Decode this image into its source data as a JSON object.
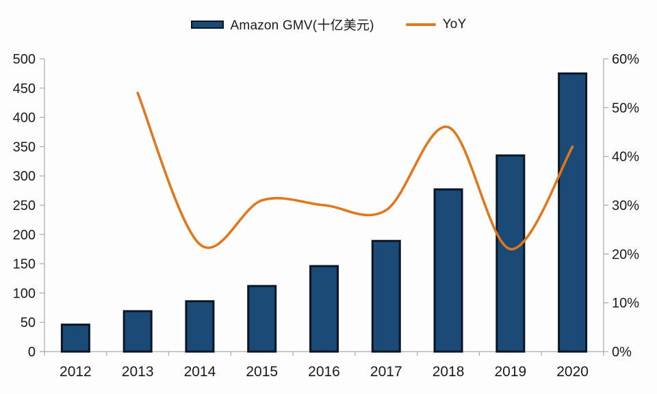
{
  "legend": {
    "items": [
      {
        "label": "Amazon GMV(十亿美元)",
        "swatch": "bar",
        "color": "#1b4a76",
        "border_color": "#0a1626"
      },
      {
        "label": "YoY",
        "swatch": "line",
        "color": "#e2761b"
      }
    ]
  },
  "colors": {
    "bar_fill": "#1b4a76",
    "bar_border": "#0a1626",
    "line": "#e2761b",
    "axis": "#a9a9a9",
    "text": "#1a1a1a",
    "background": "#fdfdfd"
  },
  "chart_data": {
    "type": "bar",
    "subtype": "combo-bar-smooth-line",
    "title": "",
    "categories": [
      "2012",
      "2013",
      "2014",
      "2015",
      "2016",
      "2017",
      "2018",
      "2019",
      "2020"
    ],
    "series": [
      {
        "name": "Amazon GMV(十亿美元)",
        "chart": "bar",
        "axis": "left",
        "color": "#1b4a76",
        "values": [
          46,
          69,
          86,
          112,
          146,
          189,
          277,
          335,
          475
        ]
      },
      {
        "name": "YoY",
        "chart": "line",
        "axis": "right",
        "color": "#e2761b",
        "values": [
          null,
          53,
          22,
          31,
          30,
          29,
          46,
          21,
          42
        ],
        "unit": "%"
      }
    ],
    "left_axis": {
      "min": 0,
      "max": 500,
      "step": 50,
      "tick_labels": [
        "0",
        "50",
        "100",
        "150",
        "200",
        "250",
        "300",
        "350",
        "400",
        "450",
        "500"
      ]
    },
    "right_axis": {
      "min": 0,
      "max": 60,
      "step": 10,
      "tick_labels": [
        "0%",
        "10%",
        "20%",
        "30%",
        "40%",
        "50%",
        "60%"
      ]
    },
    "legend_position": "top",
    "grid": false
  }
}
